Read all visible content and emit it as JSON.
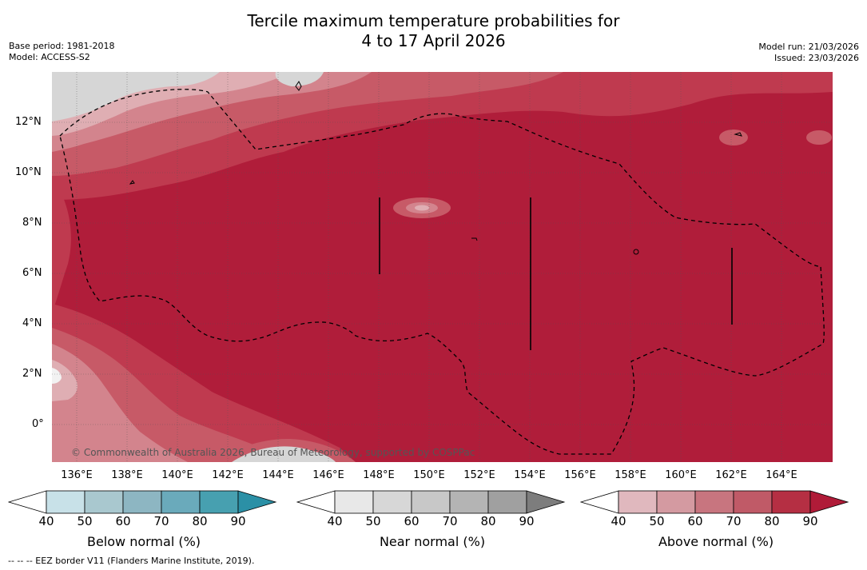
{
  "title_line1": "Tercile maximum temperature probabilities for",
  "title_line2": "4 to 17 April 2026",
  "base_period": "Base period: 1981-2018",
  "model": "Model: ACCESS-S2",
  "model_run": "Model run: 21/03/2026",
  "issued": "Issued: 23/03/2026",
  "copyright": "© Commonwealth of Australia 2026, Bureau of Meteorology, supported by COSPPac",
  "footer": "--  --  -- EEZ border V11 (Flanders Marine Institute, 2019).",
  "lat_labels": [
    "12°N",
    "10°N",
    "8°N",
    "6°N",
    "4°N",
    "2°N",
    "0°"
  ],
  "lon_labels": [
    "136°E",
    "138°E",
    "140°E",
    "142°E",
    "144°E",
    "146°E",
    "148°E",
    "150°E",
    "152°E",
    "154°E",
    "156°E",
    "158°E",
    "160°E",
    "162°E",
    "164°E"
  ],
  "colorbars": {
    "below": {
      "label": "Below normal (%)",
      "ticks": [
        "40",
        "50",
        "60",
        "70",
        "80",
        "90"
      ],
      "colors": [
        "#ffffff",
        "#c8e1e8",
        "#a9c8cf",
        "#8db6c2",
        "#6aaabb",
        "#47a0b0",
        "#2b90a6"
      ]
    },
    "near": {
      "label": "Near normal (%)",
      "ticks": [
        "40",
        "50",
        "60",
        "70",
        "80",
        "90"
      ],
      "colors": [
        "#ffffff",
        "#e8e8e8",
        "#d7d7d7",
        "#c8c8c8",
        "#b4b4b4",
        "#a0a0a0",
        "#7d7d7d"
      ]
    },
    "above": {
      "label": "Above normal (%)",
      "ticks": [
        "40",
        "50",
        "60",
        "70",
        "80",
        "90"
      ],
      "colors": [
        "#ffffff",
        "#e0b8be",
        "#d49aa1",
        "#c8757f",
        "#c05a67",
        "#b52f43",
        "#b01b38"
      ]
    }
  },
  "map_colors": {
    "a90": "#b01d3a",
    "a80": "#bf3a4f",
    "a70": "#c75a67",
    "a60": "#d3848d",
    "a50": "#dfaeb3",
    "n": "#d6d6d6"
  }
}
